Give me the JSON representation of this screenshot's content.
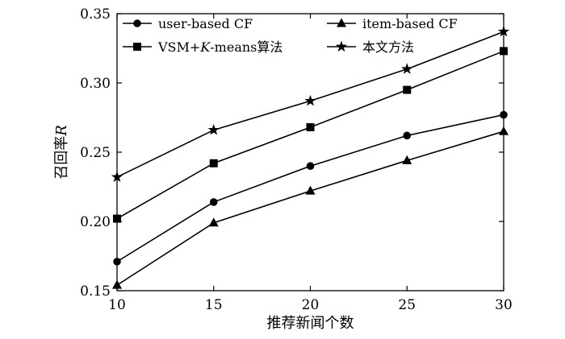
{
  "chart_data": {
    "type": "line",
    "title": "",
    "xlabel": "推荐新闻个数",
    "ylabel": "召回率",
    "ylabel_var": "R",
    "x": [
      10,
      15,
      20,
      25,
      30
    ],
    "xlim": [
      10,
      30
    ],
    "ylim": [
      0.15,
      0.35
    ],
    "xticks": [
      "10",
      "15",
      "20",
      "25",
      "30"
    ],
    "yticks": [
      "0.15",
      "0.20",
      "0.25",
      "0.30",
      "0.35"
    ],
    "xtick_values": [
      10,
      15,
      20,
      25,
      30
    ],
    "ytick_values": [
      0.15,
      0.2,
      0.25,
      0.3,
      0.35
    ],
    "grid": false,
    "legend_position": "top",
    "series": [
      {
        "name": "user-based CF",
        "marker": "circle",
        "values": [
          0.171,
          0.214,
          0.24,
          0.262,
          0.277
        ]
      },
      {
        "name": "item-based CF",
        "marker": "triangle",
        "values": [
          0.154,
          0.199,
          0.222,
          0.244,
          0.265
        ]
      },
      {
        "name": "VSM+K-means算法",
        "marker": "square",
        "values": [
          0.202,
          0.242,
          0.268,
          0.295,
          0.323
        ]
      },
      {
        "name": "本文方法",
        "marker": "star",
        "values": [
          0.232,
          0.266,
          0.287,
          0.31,
          0.337
        ]
      }
    ],
    "legend_parts": {
      "vsm_prefix": "VSM+",
      "vsm_k": "K",
      "vsm_suffix": "-means算法"
    }
  }
}
